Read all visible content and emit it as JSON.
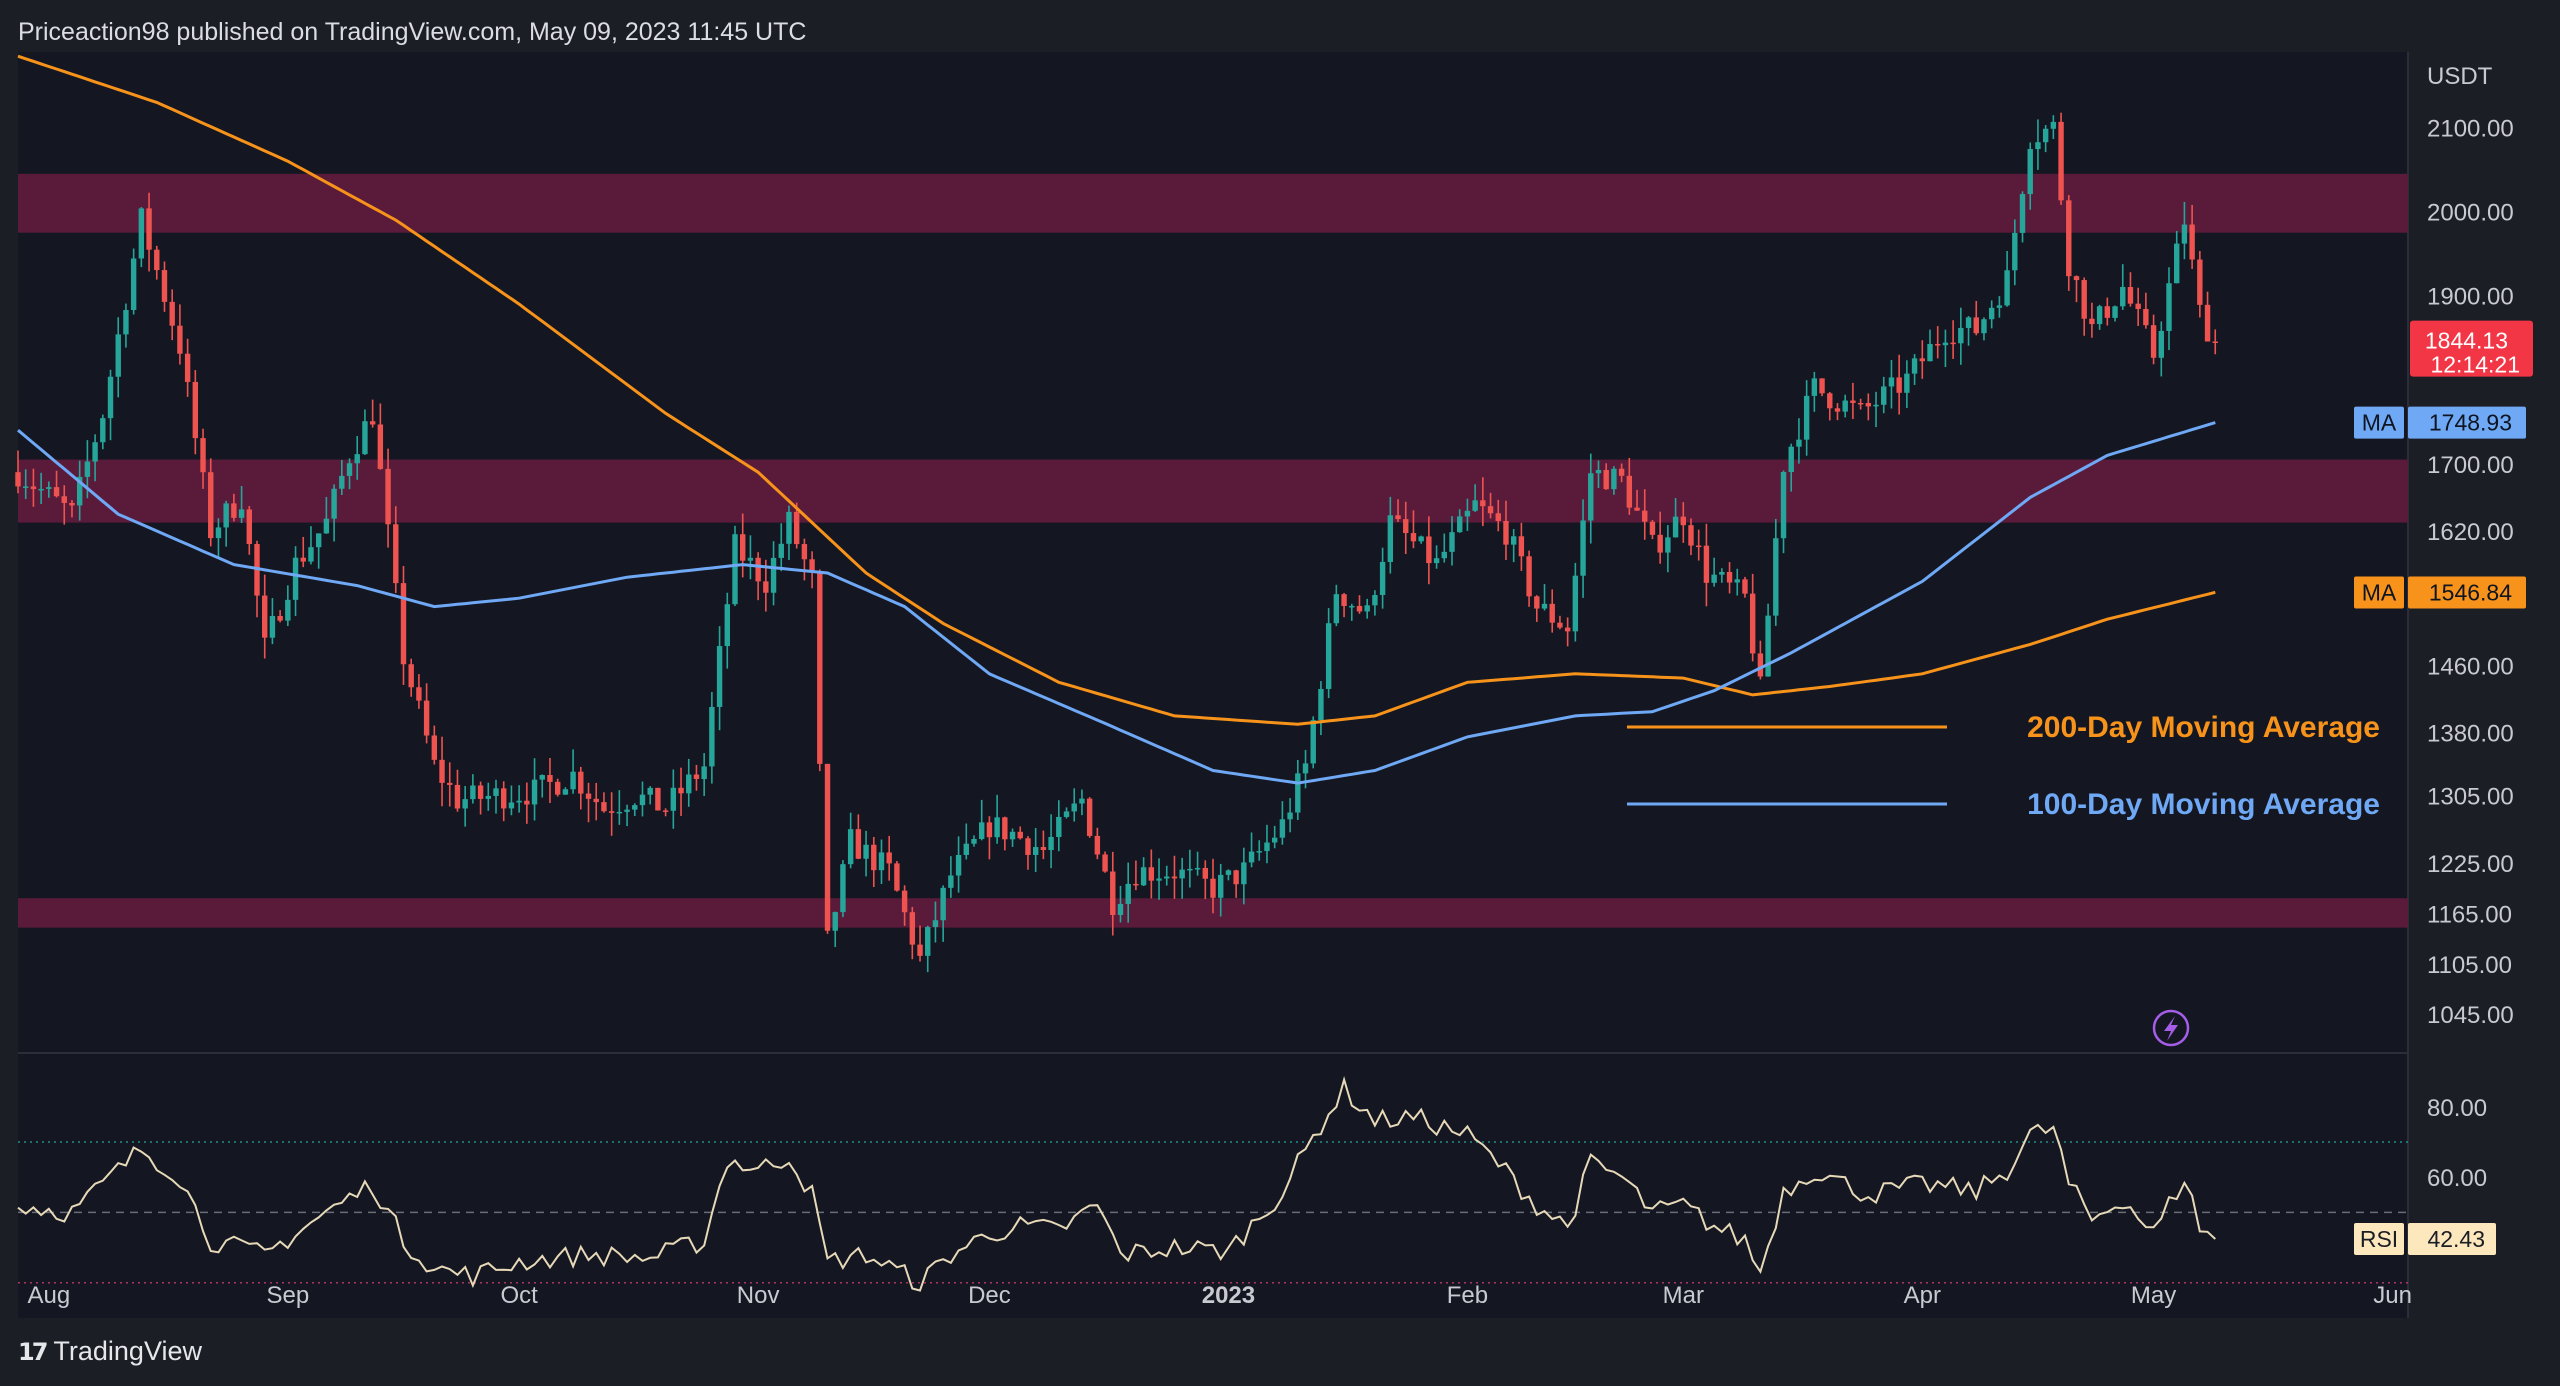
{
  "header": {
    "text": "Priceaction98 published on TradingView.com, May 09, 2023 11:45 UTC"
  },
  "footer": {
    "logo": "17",
    "brand": "TradingView"
  },
  "colors": {
    "background": "#1c1e26",
    "plot_background": "#141722",
    "zone": "#5a1b3a",
    "ma200": "#f7931a",
    "ma100": "#6fa8f5",
    "up": "#26a69a",
    "down": "#ef5350",
    "rsi": "#e7d9b8",
    "price_tag": "#f23645",
    "rsi_tag": "#fde7bd"
  },
  "icons": {
    "flash": "lightning-bolt-icon",
    "logo": "tradingview-logo-icon"
  },
  "chart_data": {
    "type": "candlestick",
    "currency": "USDT",
    "ylim": [
      1000,
      2190
    ],
    "y_ticks": [
      "2100.00",
      "2000.00",
      "1900.00",
      "1700.00",
      "1620.00",
      "1460.00",
      "1380.00",
      "1305.00",
      "1225.00",
      "1165.00",
      "1105.00",
      "1045.00"
    ],
    "x_ticks": [
      "Aug",
      "Sep",
      "Oct",
      "Nov",
      "Dec",
      "2023",
      "Feb",
      "Mar",
      "Apr",
      "May",
      "Jun"
    ],
    "x_tick_dates": [
      "2022-08-01",
      "2022-09-01",
      "2022-10-01",
      "2022-11-01",
      "2022-12-01",
      "2023-01-01",
      "2023-02-01",
      "2023-03-01",
      "2023-04-01",
      "2023-05-01",
      "2023-06-01"
    ],
    "date_range": [
      "2022-07-28",
      "2023-06-03"
    ],
    "zones": [
      {
        "low": 1975,
        "high": 2045
      },
      {
        "low": 1630,
        "high": 1705
      },
      {
        "low": 1148,
        "high": 1183
      }
    ],
    "anchors": [
      [
        "2022-07-28",
        1690
      ],
      [
        "2022-08-04",
        1640
      ],
      [
        "2022-08-08",
        1760
      ],
      [
        "2022-08-13",
        1990
      ],
      [
        "2022-08-18",
        1840
      ],
      [
        "2022-08-22",
        1620
      ],
      [
        "2022-08-26",
        1660
      ],
      [
        "2022-08-29",
        1480
      ],
      [
        "2022-09-02",
        1580
      ],
      [
        "2022-09-06",
        1630
      ],
      [
        "2022-09-09",
        1710
      ],
      [
        "2022-09-12",
        1760
      ],
      [
        "2022-09-16",
        1470
      ],
      [
        "2022-09-20",
        1340
      ],
      [
        "2022-09-23",
        1300
      ],
      [
        "2022-10-03",
        1310
      ],
      [
        "2022-10-08",
        1330
      ],
      [
        "2022-10-12",
        1290
      ],
      [
        "2022-10-16",
        1305
      ],
      [
        "2022-10-20",
        1290
      ],
      [
        "2022-10-25",
        1340
      ],
      [
        "2022-10-29",
        1600
      ],
      [
        "2022-11-02",
        1560
      ],
      [
        "2022-11-05",
        1630
      ],
      [
        "2022-11-08",
        1560
      ],
      [
        "2022-11-09",
        1330
      ],
      [
        "2022-11-10",
        1130
      ],
      [
        "2022-11-13",
        1250
      ],
      [
        "2022-11-18",
        1215
      ],
      [
        "2022-11-22",
        1110
      ],
      [
        "2022-11-26",
        1210
      ],
      [
        "2022-12-01",
        1270
      ],
      [
        "2022-12-04",
        1260
      ],
      [
        "2022-12-08",
        1240
      ],
      [
        "2022-12-13",
        1300
      ],
      [
        "2022-12-17",
        1180
      ],
      [
        "2022-12-20",
        1215
      ],
      [
        "2022-12-25",
        1215
      ],
      [
        "2022-12-30",
        1195
      ],
      [
        "2023-01-03",
        1215
      ],
      [
        "2023-01-08",
        1270
      ],
      [
        "2023-01-11",
        1340
      ],
      [
        "2023-01-15",
        1550
      ],
      [
        "2023-01-19",
        1520
      ],
      [
        "2023-01-22",
        1630
      ],
      [
        "2023-01-28",
        1580
      ],
      [
        "2023-02-02",
        1650
      ],
      [
        "2023-02-06",
        1620
      ],
      [
        "2023-02-10",
        1530
      ],
      [
        "2023-02-14",
        1505
      ],
      [
        "2023-02-17",
        1690
      ],
      [
        "2023-02-21",
        1680
      ],
      [
        "2023-02-25",
        1600
      ],
      [
        "2023-03-01",
        1640
      ],
      [
        "2023-03-04",
        1570
      ],
      [
        "2023-03-09",
        1540
      ],
      [
        "2023-03-11",
        1430
      ],
      [
        "2023-03-14",
        1700
      ],
      [
        "2023-03-18",
        1790
      ],
      [
        "2023-03-24",
        1760
      ],
      [
        "2023-03-30",
        1800
      ],
      [
        "2023-04-04",
        1860
      ],
      [
        "2023-04-08",
        1860
      ],
      [
        "2023-04-12",
        1920
      ],
      [
        "2023-04-15",
        2090
      ],
      [
        "2023-04-18",
        2100
      ],
      [
        "2023-04-20",
        1940
      ],
      [
        "2023-04-23",
        1860
      ],
      [
        "2023-04-27",
        1910
      ],
      [
        "2023-05-01",
        1830
      ],
      [
        "2023-05-05",
        1990
      ],
      [
        "2023-05-07",
        1880
      ],
      [
        "2023-05-09",
        1844
      ]
    ],
    "ma200": [
      [
        "2022-07-28",
        2185
      ],
      [
        "2022-08-15",
        2130
      ],
      [
        "2022-09-01",
        2060
      ],
      [
        "2022-09-15",
        1990
      ],
      [
        "2022-10-01",
        1890
      ],
      [
        "2022-10-20",
        1760
      ],
      [
        "2022-11-01",
        1690
      ],
      [
        "2022-11-15",
        1570
      ],
      [
        "2022-11-25",
        1510
      ],
      [
        "2022-12-10",
        1440
      ],
      [
        "2022-12-25",
        1400
      ],
      [
        "2023-01-10",
        1390
      ],
      [
        "2023-01-20",
        1400
      ],
      [
        "2023-02-01",
        1440
      ],
      [
        "2023-02-15",
        1450
      ],
      [
        "2023-03-01",
        1445
      ],
      [
        "2023-03-10",
        1425
      ],
      [
        "2023-03-20",
        1435
      ],
      [
        "2023-04-01",
        1450
      ],
      [
        "2023-04-15",
        1485
      ],
      [
        "2023-04-25",
        1515
      ],
      [
        "2023-05-09",
        1547
      ]
    ],
    "ma100": [
      [
        "2022-07-28",
        1740
      ],
      [
        "2022-08-10",
        1640
      ],
      [
        "2022-08-25",
        1580
      ],
      [
        "2022-09-10",
        1555
      ],
      [
        "2022-09-20",
        1530
      ],
      [
        "2022-10-01",
        1540
      ],
      [
        "2022-10-15",
        1565
      ],
      [
        "2022-10-30",
        1580
      ],
      [
        "2022-11-10",
        1570
      ],
      [
        "2022-11-20",
        1530
      ],
      [
        "2022-12-01",
        1450
      ],
      [
        "2022-12-15",
        1395
      ],
      [
        "2022-12-30",
        1335
      ],
      [
        "2023-01-10",
        1320
      ],
      [
        "2023-01-20",
        1335
      ],
      [
        "2023-02-01",
        1375
      ],
      [
        "2023-02-15",
        1400
      ],
      [
        "2023-02-25",
        1405
      ],
      [
        "2023-03-05",
        1430
      ],
      [
        "2023-03-15",
        1475
      ],
      [
        "2023-04-01",
        1560
      ],
      [
        "2023-04-15",
        1660
      ],
      [
        "2023-04-25",
        1710
      ],
      [
        "2023-05-09",
        1749
      ]
    ],
    "legend": [
      {
        "name": "200-Day Moving Average",
        "color": "#f7931a"
      },
      {
        "name": "100-Day Moving Average",
        "color": "#6fa8f5"
      }
    ],
    "price_tag": {
      "label": "1844.13",
      "countdown": "12:14:21"
    },
    "ma_tags": [
      {
        "label": "MA",
        "value": "1748.93",
        "color": "#6fa8f5"
      },
      {
        "label": "MA",
        "value": "1546.84",
        "color": "#f7931a"
      }
    ],
    "rsi": {
      "label": "RSI",
      "value": "42.43",
      "ylim": [
        20,
        95
      ],
      "ticks": [
        "80.00",
        "60.00"
      ],
      "upper": 70,
      "mid": 50,
      "lower": 30,
      "anchors": [
        [
          "2022-07-28",
          52
        ],
        [
          "2022-08-04",
          50
        ],
        [
          "2022-08-08",
          58
        ],
        [
          "2022-08-13",
          68
        ],
        [
          "2022-08-18",
          60
        ],
        [
          "2022-08-22",
          42
        ],
        [
          "2022-08-29",
          38
        ],
        [
          "2022-09-06",
          50
        ],
        [
          "2022-09-12",
          58
        ],
        [
          "2022-09-16",
          42
        ],
        [
          "2022-09-20",
          34
        ],
        [
          "2022-09-25",
          32
        ],
        [
          "2022-10-01",
          36
        ],
        [
          "2022-10-10",
          38
        ],
        [
          "2022-10-18",
          37
        ],
        [
          "2022-10-25",
          42
        ],
        [
          "2022-10-28",
          65
        ],
        [
          "2022-11-01",
          62
        ],
        [
          "2022-11-05",
          66
        ],
        [
          "2022-11-08",
          55
        ],
        [
          "2022-11-10",
          36
        ],
        [
          "2022-11-15",
          38
        ],
        [
          "2022-11-22",
          30
        ],
        [
          "2022-11-26",
          38
        ],
        [
          "2022-12-01",
          44
        ],
        [
          "2022-12-05",
          46
        ],
        [
          "2022-12-10",
          45
        ],
        [
          "2022-12-15",
          52
        ],
        [
          "2022-12-18",
          38
        ],
        [
          "2022-12-25",
          40
        ],
        [
          "2023-01-01",
          39
        ],
        [
          "2023-01-08",
          56
        ],
        [
          "2023-01-13",
          75
        ],
        [
          "2023-01-16",
          85
        ],
        [
          "2023-01-20",
          76
        ],
        [
          "2023-01-25",
          77
        ],
        [
          "2023-02-01",
          72
        ],
        [
          "2023-02-05",
          64
        ],
        [
          "2023-02-10",
          52
        ],
        [
          "2023-02-14",
          46
        ],
        [
          "2023-02-17",
          64
        ],
        [
          "2023-02-21",
          60
        ],
        [
          "2023-02-25",
          50
        ],
        [
          "2023-03-01",
          52
        ],
        [
          "2023-03-05",
          46
        ],
        [
          "2023-03-09",
          42
        ],
        [
          "2023-03-11",
          33
        ],
        [
          "2023-03-14",
          56
        ],
        [
          "2023-03-18",
          62
        ],
        [
          "2023-03-25",
          55
        ],
        [
          "2023-04-01",
          58
        ],
        [
          "2023-04-08",
          56
        ],
        [
          "2023-04-12",
          62
        ],
        [
          "2023-04-15",
          72
        ],
        [
          "2023-04-18",
          74
        ],
        [
          "2023-04-20",
          58
        ],
        [
          "2023-04-23",
          48
        ],
        [
          "2023-04-27",
          54
        ],
        [
          "2023-05-01",
          44
        ],
        [
          "2023-05-05",
          60
        ],
        [
          "2023-05-07",
          46
        ],
        [
          "2023-05-09",
          42
        ]
      ]
    }
  }
}
